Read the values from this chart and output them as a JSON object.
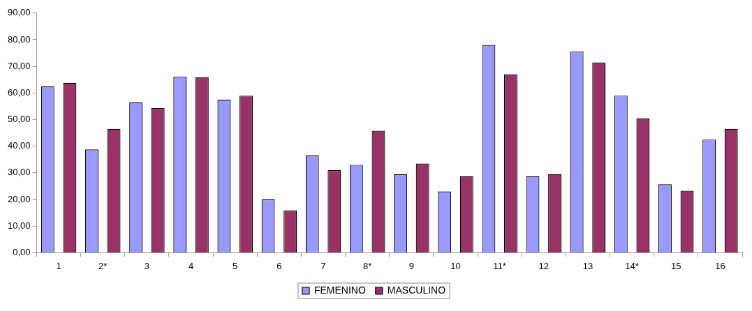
{
  "chart_data": {
    "type": "bar",
    "categories": [
      "1",
      "2*",
      "3",
      "4",
      "5",
      "6",
      "7",
      "8*",
      "9",
      "10",
      "11*",
      "12",
      "13",
      "14*",
      "15",
      "16"
    ],
    "series": [
      {
        "name": "FEMENINO",
        "color": "#9999ff",
        "values": [
          62.5,
          38.8,
          56.5,
          66.2,
          57.5,
          20,
          36.5,
          33,
          29.5,
          23,
          78,
          28.7,
          75.7,
          59,
          25.7,
          42.5
        ]
      },
      {
        "name": "MASCULINO",
        "color": "#993366",
        "values": [
          63.8,
          46.5,
          54.3,
          66,
          59,
          15.8,
          31,
          45.8,
          33.5,
          28.7,
          67,
          29.5,
          71.5,
          50.5,
          23.3,
          46.5
        ]
      }
    ],
    "ylim": [
      0,
      90
    ],
    "yticks": [
      {
        "value": 0,
        "label": "0,00"
      },
      {
        "value": 10,
        "label": "10,00"
      },
      {
        "value": 20,
        "label": "20,00"
      },
      {
        "value": 30,
        "label": "30,00"
      },
      {
        "value": 40,
        "label": "40,00"
      },
      {
        "value": 50,
        "label": "50,00"
      },
      {
        "value": 60,
        "label": "60,00"
      },
      {
        "value": 70,
        "label": "70,00"
      },
      {
        "value": 80,
        "label": "80,00"
      },
      {
        "value": 90,
        "label": "90,00"
      }
    ],
    "grid": false,
    "legend": "bottom"
  }
}
